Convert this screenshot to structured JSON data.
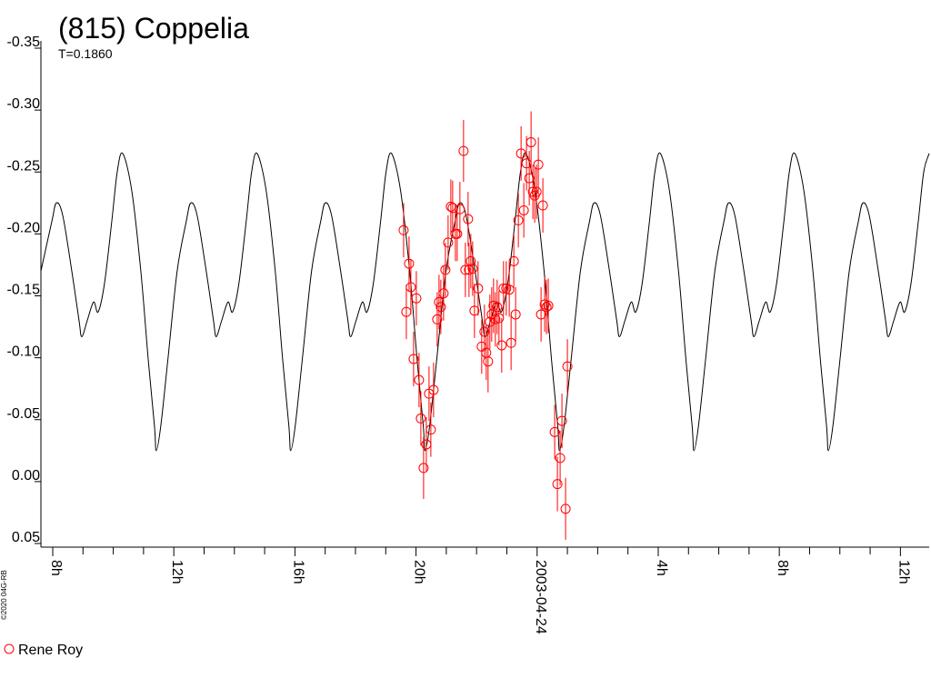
{
  "chart_data": {
    "type": "scatter",
    "title": "(815) Coppelia",
    "subtitle": "T=0.1860",
    "credit": "©2020 04G-RB",
    "invert_y": true,
    "ylim": [
      -0.35,
      0.05
    ],
    "yticks": [
      {
        "value": -0.35,
        "label": "-0.35"
      },
      {
        "value": -0.3,
        "label": "-0.30"
      },
      {
        "value": -0.25,
        "label": "-0.25"
      },
      {
        "value": -0.2,
        "label": "-0.20"
      },
      {
        "value": -0.15,
        "label": "-0.15"
      },
      {
        "value": -0.1,
        "label": "-0.10"
      },
      {
        "value": -0.05,
        "label": "-0.05"
      },
      {
        "value": 0,
        "label": "0.00"
      },
      {
        "value": 0.05,
        "label": "0.05"
      }
    ],
    "xlim": [
      7.61,
      36.95
    ],
    "xticks": [
      {
        "value": 8,
        "label": "8h"
      },
      {
        "value": 12,
        "label": "12h"
      },
      {
        "value": 16,
        "label": "16h"
      },
      {
        "value": 20,
        "label": "20h"
      },
      {
        "value": 24,
        "label": "2003-04-24"
      },
      {
        "value": 28,
        "label": "4h"
      },
      {
        "value": 32,
        "label": "8h"
      },
      {
        "value": 36,
        "label": "12h"
      }
    ],
    "xticks_minor": [
      9,
      10,
      11,
      13,
      14,
      15,
      17,
      18,
      19,
      21,
      22,
      23,
      25,
      26,
      27,
      29,
      30,
      31,
      33,
      34,
      35
    ],
    "model": {
      "color": "#000000",
      "x": [
        7.61,
        7.97,
        8.12,
        8.33,
        8.63,
        8.87,
        8.96,
        9.14,
        9.35,
        9.5,
        9.71,
        9.95,
        10.13,
        10.31,
        10.61,
        10.91,
        11.15,
        11.36,
        11.42,
        11.57,
        11.81,
        12.11,
        12.41,
        12.56,
        12.77,
        13.07,
        13.31,
        13.4,
        13.58,
        13.79,
        13.94,
        14.15,
        14.39,
        14.57,
        14.75,
        15.05,
        15.35,
        15.59,
        15.8,
        15.86,
        16.01,
        16.25,
        16.55,
        16.85,
        17.0,
        17.21,
        17.51,
        17.75,
        17.84,
        18.02,
        18.23,
        18.38,
        18.59,
        18.83,
        19.01,
        19.19,
        19.49,
        19.79,
        20.03,
        20.24,
        20.3,
        20.45,
        20.69,
        20.99,
        21.29,
        21.44,
        21.65,
        21.95,
        22.19,
        22.28,
        22.46,
        22.67,
        22.82,
        23.03,
        23.27,
        23.45,
        23.63,
        23.93,
        24.23,
        24.47,
        24.68,
        24.74,
        24.89,
        25.13,
        25.43,
        25.73,
        25.88,
        26.09,
        26.39,
        26.63,
        26.72,
        26.9,
        27.11,
        27.26,
        27.47,
        27.71,
        27.89,
        28.07,
        28.37,
        28.67,
        28.91,
        29.12,
        29.18,
        29.33,
        29.57,
        29.87,
        30.17,
        30.32,
        30.53,
        30.83,
        31.07,
        31.16,
        31.34,
        31.55,
        31.7,
        31.91,
        32.15,
        32.33,
        32.51,
        32.81,
        33.11,
        33.35,
        33.56,
        33.62,
        33.77,
        34.01,
        34.31,
        34.61,
        34.76,
        34.97,
        35.27,
        35.51,
        35.6,
        35.78,
        35.99,
        36.14,
        36.35,
        36.59,
        36.77,
        36.95
      ],
      "values": [
        -0.17,
        -0.21,
        -0.225,
        -0.215,
        -0.17,
        -0.13,
        -0.117,
        -0.13,
        -0.145,
        -0.137,
        -0.16,
        -0.21,
        -0.25,
        -0.265,
        -0.235,
        -0.17,
        -0.1,
        -0.045,
        -0.025,
        -0.045,
        -0.1,
        -0.17,
        -0.21,
        -0.225,
        -0.215,
        -0.17,
        -0.13,
        -0.117,
        -0.13,
        -0.145,
        -0.137,
        -0.16,
        -0.21,
        -0.25,
        -0.265,
        -0.235,
        -0.17,
        -0.1,
        -0.045,
        -0.025,
        -0.045,
        -0.1,
        -0.17,
        -0.21,
        -0.225,
        -0.215,
        -0.17,
        -0.13,
        -0.117,
        -0.13,
        -0.145,
        -0.137,
        -0.16,
        -0.21,
        -0.25,
        -0.265,
        -0.235,
        -0.17,
        -0.1,
        -0.045,
        -0.025,
        -0.045,
        -0.1,
        -0.17,
        -0.21,
        -0.225,
        -0.215,
        -0.17,
        -0.13,
        -0.117,
        -0.13,
        -0.145,
        -0.137,
        -0.16,
        -0.21,
        -0.25,
        -0.265,
        -0.235,
        -0.17,
        -0.1,
        -0.045,
        -0.025,
        -0.045,
        -0.1,
        -0.17,
        -0.21,
        -0.225,
        -0.215,
        -0.17,
        -0.13,
        -0.117,
        -0.13,
        -0.145,
        -0.137,
        -0.16,
        -0.21,
        -0.25,
        -0.265,
        -0.235,
        -0.17,
        -0.1,
        -0.045,
        -0.025,
        -0.045,
        -0.1,
        -0.17,
        -0.21,
        -0.225,
        -0.215,
        -0.17,
        -0.13,
        -0.117,
        -0.13,
        -0.145,
        -0.137,
        -0.16,
        -0.21,
        -0.25,
        -0.265,
        -0.235,
        -0.17,
        -0.1,
        -0.045,
        -0.025,
        -0.045,
        -0.1,
        -0.17,
        -0.21,
        -0.225,
        -0.215,
        -0.17,
        -0.13,
        -0.117,
        -0.13,
        -0.145,
        -0.137,
        -0.16,
        -0.21,
        -0.25,
        -0.265
      ]
    },
    "series": [
      {
        "name": "Rene Roy",
        "color": "#ff0000",
        "x": [
          19.59,
          19.68,
          19.77,
          19.83,
          19.92,
          20.01,
          20.1,
          20.16,
          20.25,
          20.34,
          20.43,
          20.49,
          20.58,
          20.7,
          20.76,
          20.82,
          20.91,
          20.97,
          21.06,
          21.15,
          21.21,
          21.3,
          21.36,
          21.45,
          21.57,
          21.63,
          21.72,
          21.75,
          21.81,
          21.87,
          21.93,
          22.05,
          22.17,
          22.26,
          22.32,
          22.38,
          22.44,
          22.5,
          22.56,
          22.62,
          22.68,
          22.74,
          22.83,
          22.89,
          22.98,
          23.08,
          23.14,
          23.23,
          23.29,
          23.38,
          23.47,
          23.56,
          23.65,
          23.74,
          23.8,
          23.86,
          23.92,
          23.98,
          24.04,
          24.13,
          24.19,
          24.25,
          24.31,
          24.37,
          24.58,
          24.67,
          24.76,
          24.82,
          24.94,
          25.0
        ],
        "values": [
          -0.203,
          -0.137,
          -0.176,
          -0.157,
          -0.099,
          -0.148,
          -0.082,
          -0.051,
          -0.011,
          -0.03,
          -0.071,
          -0.042,
          -0.074,
          -0.131,
          -0.145,
          -0.141,
          -0.152,
          -0.171,
          -0.193,
          -0.222,
          -0.221,
          -0.2,
          -0.2,
          -0.22,
          -0.267,
          -0.171,
          -0.212,
          -0.171,
          -0.178,
          -0.172,
          -0.138,
          -0.156,
          -0.109,
          -0.121,
          -0.104,
          -0.097,
          -0.129,
          -0.135,
          -0.142,
          -0.131,
          -0.141,
          -0.132,
          -0.11,
          -0.156,
          -0.156,
          -0.155,
          -0.112,
          -0.178,
          -0.135,
          -0.211,
          -0.265,
          -0.219,
          -0.257,
          -0.245,
          -0.274,
          -0.234,
          -0.231,
          -0.234,
          -0.256,
          -0.135,
          -0.223,
          -0.143,
          -0.141,
          -0.142,
          -0.04,
          0.002,
          -0.019,
          -0.049,
          0.022,
          -0.093
        ],
        "errors": [
          0.022,
          0.022,
          0.022,
          0.022,
          0.022,
          0.022,
          0.022,
          0.022,
          0.025,
          0.022,
          0.022,
          0.022,
          0.022,
          0.022,
          0.022,
          0.022,
          0.022,
          0.022,
          0.022,
          0.022,
          0.022,
          0.022,
          0.022,
          0.022,
          0.025,
          0.022,
          0.022,
          0.022,
          0.022,
          0.022,
          0.022,
          0.022,
          0.022,
          0.022,
          0.022,
          0.025,
          0.022,
          0.022,
          0.022,
          0.022,
          0.022,
          0.022,
          0.022,
          0.022,
          0.022,
          0.022,
          0.022,
          0.022,
          0.022,
          0.022,
          0.022,
          0.022,
          0.022,
          0.022,
          0.025,
          0.022,
          0.022,
          0.022,
          0.022,
          0.022,
          0.022,
          0.022,
          0.022,
          0.022,
          0.022,
          0.022,
          0.022,
          0.022,
          0.025,
          0.022
        ]
      }
    ]
  }
}
